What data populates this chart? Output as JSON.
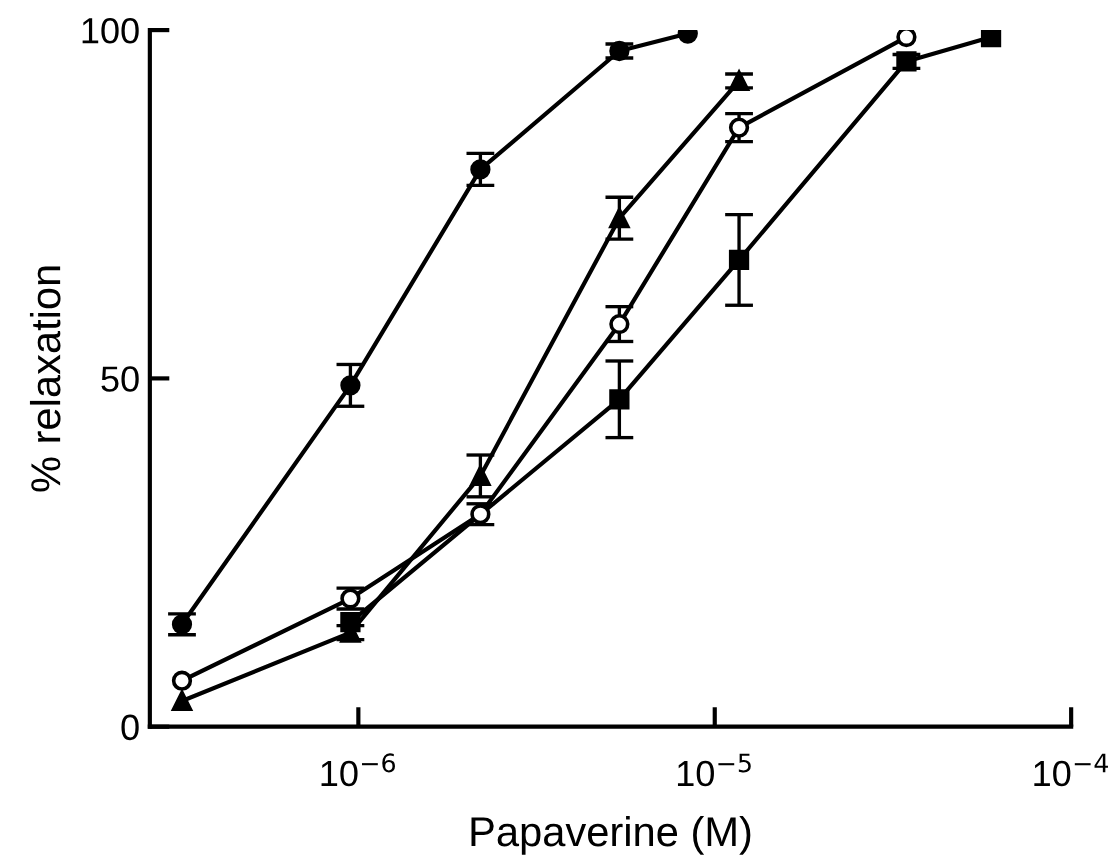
{
  "chart_data": {
    "type": "line",
    "xlabel": "Papaverine (M)",
    "ylabel": "% relaxation",
    "log": "x",
    "xlim": [
      2.6e-07,
      0.0001
    ],
    "xticks": [
      {
        "value": 1e-06,
        "label": "10$^{−6}$"
      },
      {
        "value": 1e-05,
        "label": "10$^{−5}$"
      },
      {
        "value": 0.0001,
        "label": "10$^{−4}$"
      }
    ],
    "ylim": [
      0,
      100
    ],
    "yticks": [
      0,
      50,
      100
    ],
    "grid": false,
    "series": [
      {
        "color": "#000000",
        "marker": "circle",
        "x": [
          3.2e-07,
          9.5e-07,
          2.2e-06,
          5.4e-06,
          8.4e-06
        ],
        "values": [
          14.7,
          49,
          80,
          97,
          99.5
        ],
        "errors": [
          1.5,
          3,
          2.3,
          1,
          null
        ]
      },
      {
        "color": "#000000",
        "marker": "triangle",
        "x": [
          3.2e-07,
          9.5e-07,
          2.2e-06,
          5.4e-06,
          1.17e-05
        ],
        "values": [
          3.7,
          13.5,
          36,
          73,
          92.7
        ],
        "errors": [
          null,
          1,
          3,
          3,
          1
        ]
      },
      {
        "color": "#ffffff",
        "marker": "circle",
        "x": [
          3.2e-07,
          9.5e-07,
          2.2e-06,
          5.4e-06,
          1.17e-05,
          3.45e-05
        ],
        "values": [
          6.6,
          18.4,
          30.5,
          57.8,
          86,
          99
        ],
        "errors": [
          null,
          1.5,
          1.5,
          2.5,
          2,
          null
        ]
      },
      {
        "color": "#000000",
        "marker": "square",
        "x": [
          9.5e-07,
          5.4e-06,
          1.17e-05,
          3.45e-05,
          5.96e-05
        ],
        "values": [
          15,
          47,
          67,
          95.5,
          99
        ],
        "errors": [
          null,
          5.5,
          6.5,
          1,
          null
        ]
      }
    ]
  }
}
